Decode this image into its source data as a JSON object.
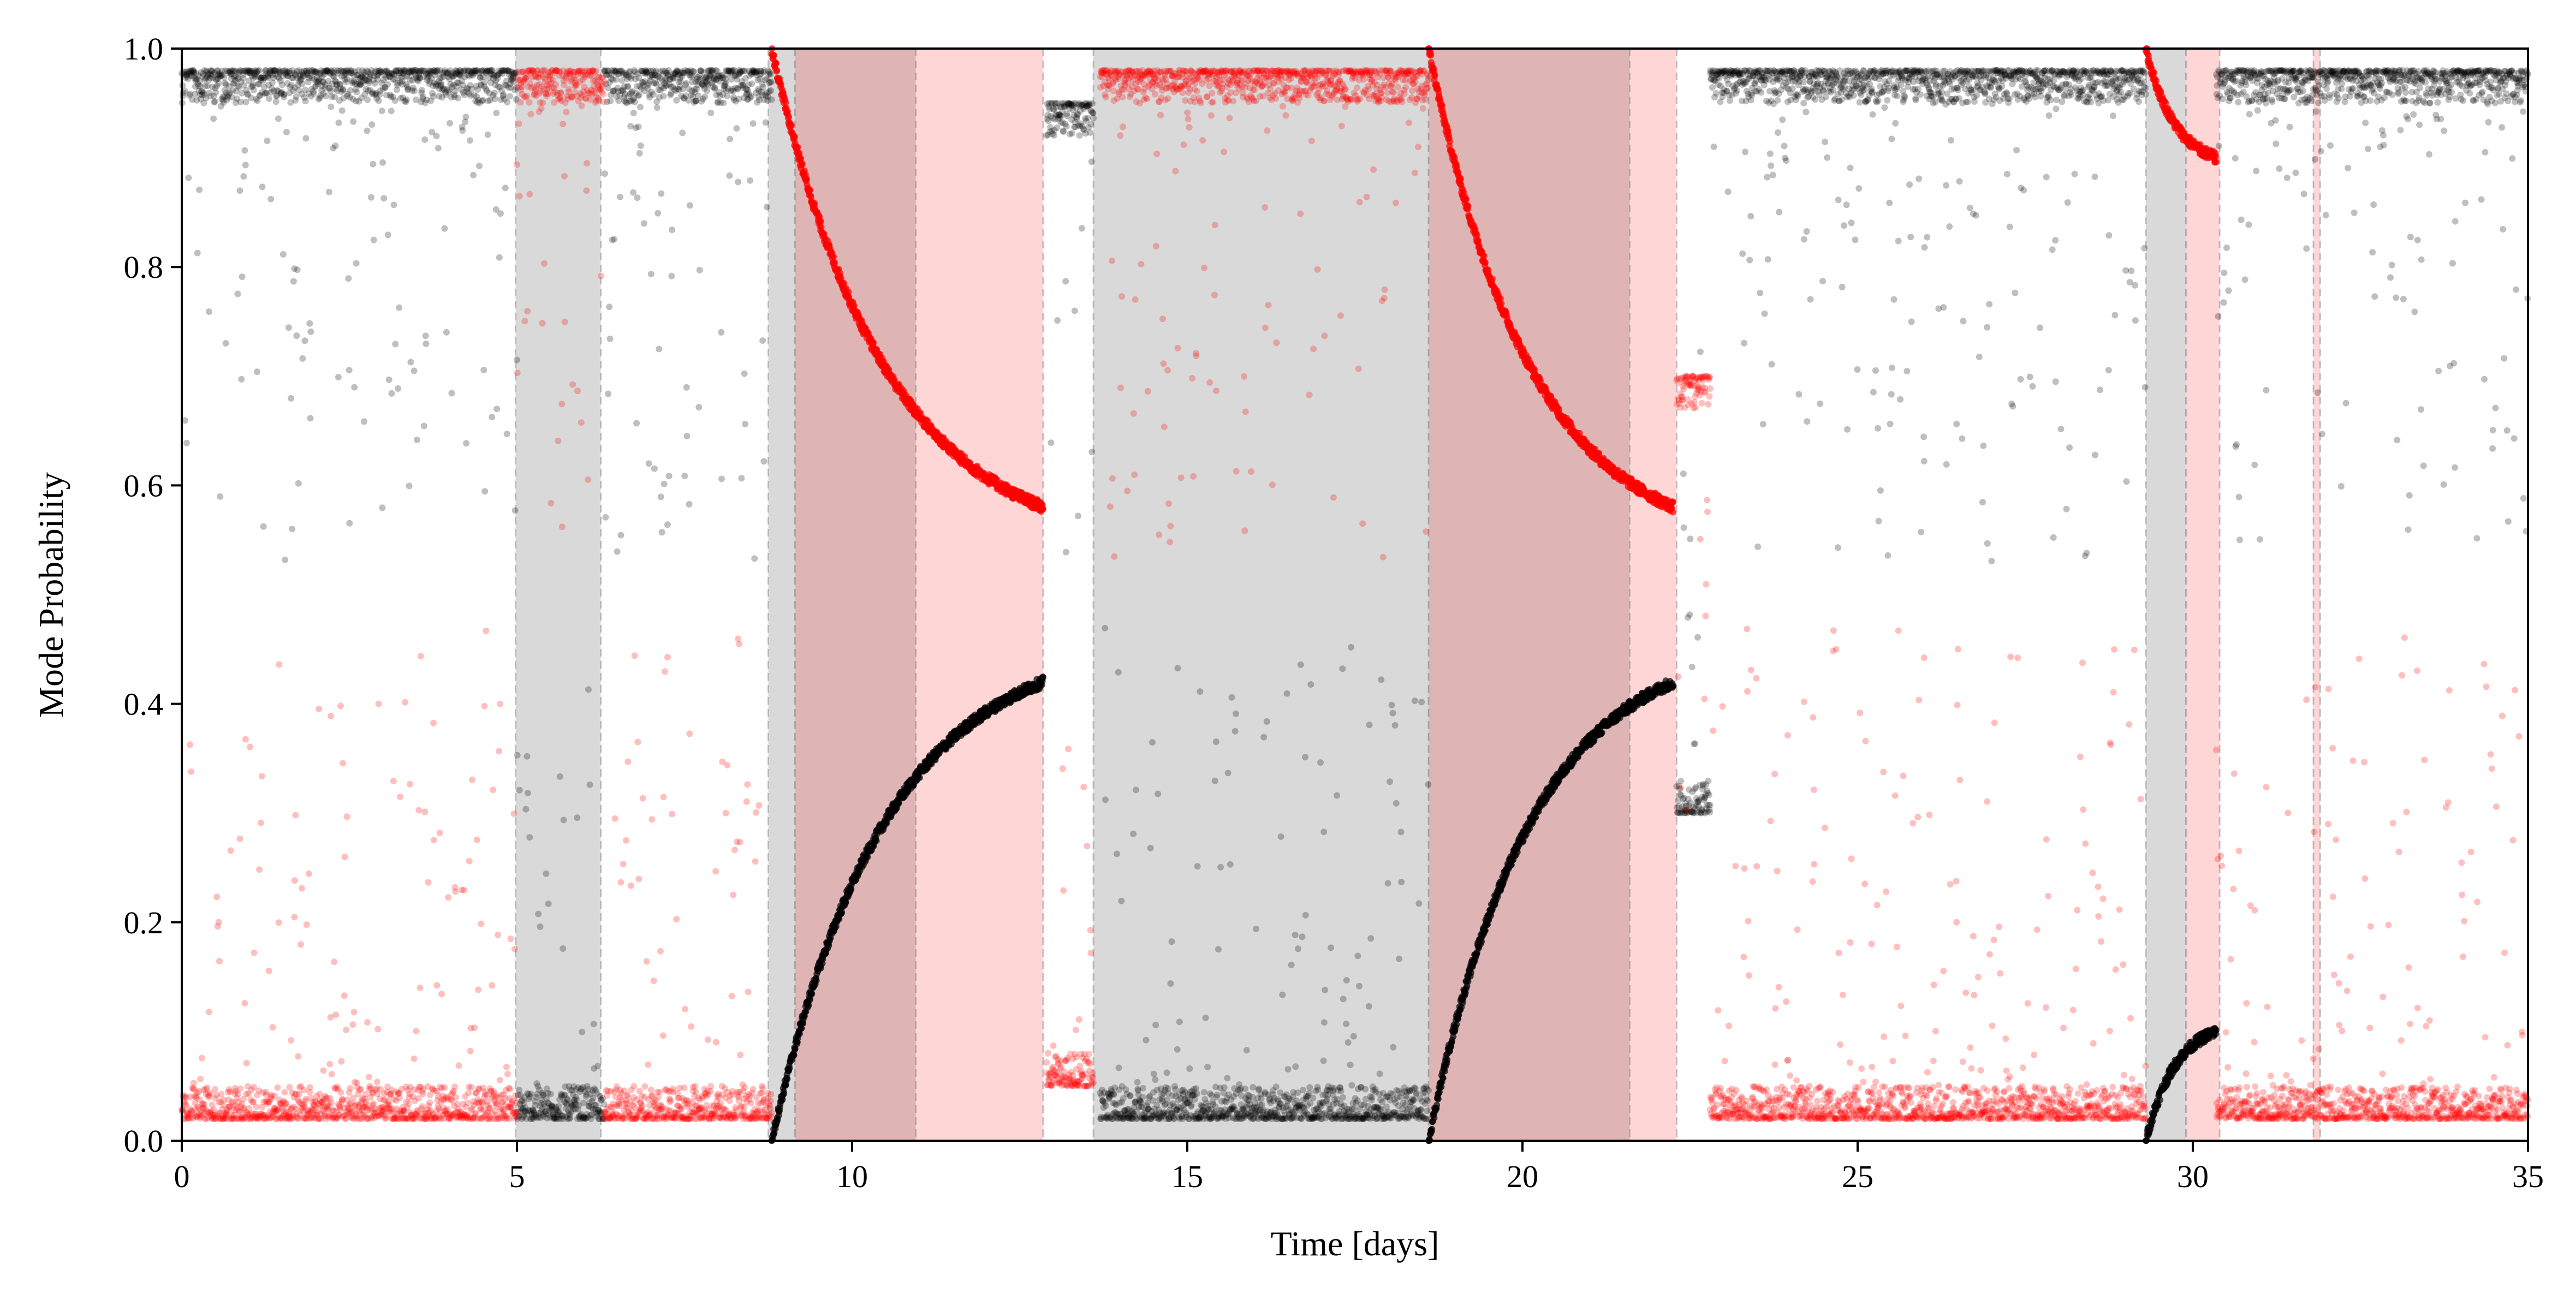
{
  "chart_data": {
    "type": "scatter",
    "title": "",
    "xlabel": "Time [days]",
    "ylabel": "Mode Probability",
    "xlim": [
      0,
      35
    ],
    "ylim": [
      0,
      1
    ],
    "grid": false,
    "legend": null,
    "x_ticks": [
      "0",
      "5",
      "10",
      "15",
      "20",
      "25",
      "30",
      "35"
    ],
    "y_ticks": [
      "0.0",
      "0.2",
      "0.4",
      "0.6",
      "0.8",
      "1.0"
    ],
    "colors": {
      "black_series": "#000000",
      "red_series": "#ff0000",
      "gray_band": "#d9d9d9",
      "pink_band": "#ffd6d6",
      "darkred_band": "#deb4b4"
    },
    "shaded_regions": [
      {
        "x0": 4.98,
        "x1": 6.25,
        "color": "gray"
      },
      {
        "x0": 8.75,
        "x1": 9.15,
        "color": "gray"
      },
      {
        "x0": 9.15,
        "x1": 10.95,
        "color": "darkred"
      },
      {
        "x0": 10.95,
        "x1": 12.85,
        "color": "pink"
      },
      {
        "x0": 13.6,
        "x1": 18.6,
        "color": "gray"
      },
      {
        "x0": 18.6,
        "x1": 21.6,
        "color": "darkred"
      },
      {
        "x0": 21.6,
        "x1": 22.3,
        "color": "pink"
      },
      {
        "x0": 29.3,
        "x1": 29.9,
        "color": "gray"
      },
      {
        "x0": 29.9,
        "x1": 30.4,
        "color": "pink"
      },
      {
        "x0": 31.8,
        "x1": 31.9,
        "color": "pink"
      }
    ],
    "series": [
      {
        "color": "black",
        "segments": [
          {
            "x0": 0,
            "x1": 5.0,
            "y0": 0.98,
            "y1": 0.98
          },
          {
            "x0": 5.0,
            "x1": 6.3,
            "y0": 0.02,
            "y1": 0.02
          },
          {
            "x0": 6.3,
            "x1": 8.8,
            "y0": 0.98,
            "y1": 0.98
          },
          {
            "x0": 8.8,
            "x1": 12.85,
            "y0": 0.0,
            "y1": 0.42
          },
          {
            "x0": 12.9,
            "x1": 13.6,
            "y0": 0.95,
            "y1": 0.95
          },
          {
            "x0": 13.7,
            "x1": 18.6,
            "y0": 0.02,
            "y1": 0.02
          },
          {
            "x0": 18.6,
            "x1": 22.25,
            "y0": 0.0,
            "y1": 0.42
          },
          {
            "x0": 22.3,
            "x1": 22.8,
            "y0": 0.3,
            "y1": 0.3
          },
          {
            "x0": 22.8,
            "x1": 29.3,
            "y0": 0.98,
            "y1": 0.98
          },
          {
            "x0": 29.3,
            "x1": 30.35,
            "y0": 0.0,
            "y1": 0.1
          },
          {
            "x0": 30.35,
            "x1": 35,
            "y0": 0.98,
            "y1": 0.98
          }
        ]
      },
      {
        "color": "red",
        "segments": [
          {
            "x0": 0,
            "x1": 5.0,
            "y0": 0.02,
            "y1": 0.02
          },
          {
            "x0": 5.0,
            "x1": 6.3,
            "y0": 0.98,
            "y1": 0.98
          },
          {
            "x0": 6.3,
            "x1": 8.8,
            "y0": 0.02,
            "y1": 0.02
          },
          {
            "x0": 8.8,
            "x1": 12.85,
            "y0": 1.0,
            "y1": 0.58
          },
          {
            "x0": 12.9,
            "x1": 13.6,
            "y0": 0.05,
            "y1": 0.05
          },
          {
            "x0": 13.7,
            "x1": 18.6,
            "y0": 0.98,
            "y1": 0.98
          },
          {
            "x0": 18.6,
            "x1": 22.25,
            "y0": 1.0,
            "y1": 0.58
          },
          {
            "x0": 22.3,
            "x1": 22.8,
            "y0": 0.7,
            "y1": 0.7
          },
          {
            "x0": 22.8,
            "x1": 29.3,
            "y0": 0.02,
            "y1": 0.02
          },
          {
            "x0": 29.3,
            "x1": 30.35,
            "y0": 1.0,
            "y1": 0.9
          },
          {
            "x0": 30.35,
            "x1": 35,
            "y0": 0.02,
            "y1": 0.02
          }
        ]
      }
    ]
  }
}
